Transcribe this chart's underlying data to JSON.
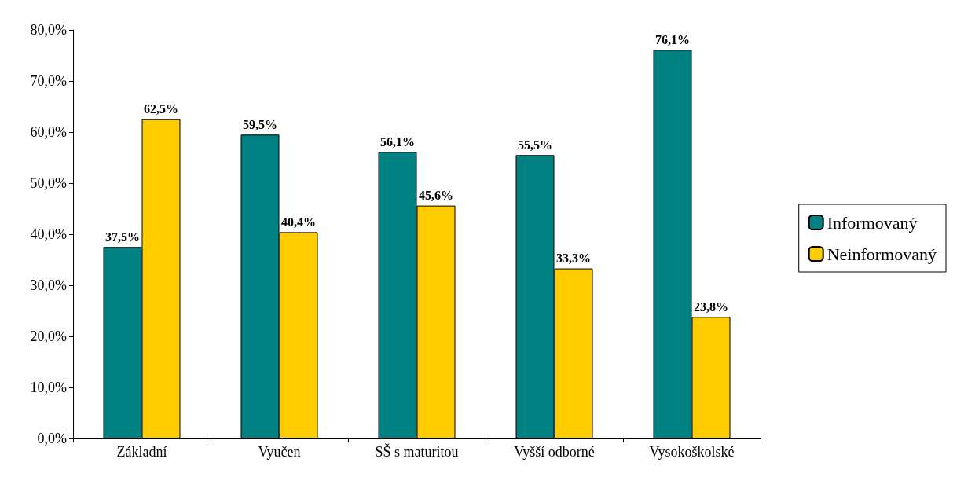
{
  "chart_data": {
    "type": "bar",
    "categories": [
      "Základní",
      "Vyučen",
      "SŠ s maturitou",
      "Vyšší odborné",
      "Vysokoškolské"
    ],
    "series": [
      {
        "name": "Informovaný",
        "color": "#008080",
        "values": [
          37.5,
          59.5,
          56.1,
          55.5,
          76.1
        ],
        "value_labels": [
          "37,5%",
          "59,5%",
          "56,1%",
          "55,5%",
          "76,1%"
        ]
      },
      {
        "name": "Neinformovaný",
        "color": "#ffcc00",
        "values": [
          62.5,
          40.4,
          45.6,
          33.3,
          23.8
        ],
        "value_labels": [
          "62,5%",
          "40,4%",
          "45,6%",
          "33,3%",
          "23,8%"
        ]
      }
    ],
    "ylim": [
      0,
      80
    ],
    "yticks": [
      {
        "value": 0,
        "label": "0,0%"
      },
      {
        "value": 10,
        "label": "10,0%"
      },
      {
        "value": 20,
        "label": "20,0%"
      },
      {
        "value": 30,
        "label": "30,0%"
      },
      {
        "value": 40,
        "label": "40,0%"
      },
      {
        "value": 50,
        "label": "50,0%"
      },
      {
        "value": 60,
        "label": "60,0%"
      },
      {
        "value": 70,
        "label": "70,0%"
      },
      {
        "value": 80,
        "label": "80,0%"
      }
    ],
    "grid": false,
    "legend": "right"
  }
}
